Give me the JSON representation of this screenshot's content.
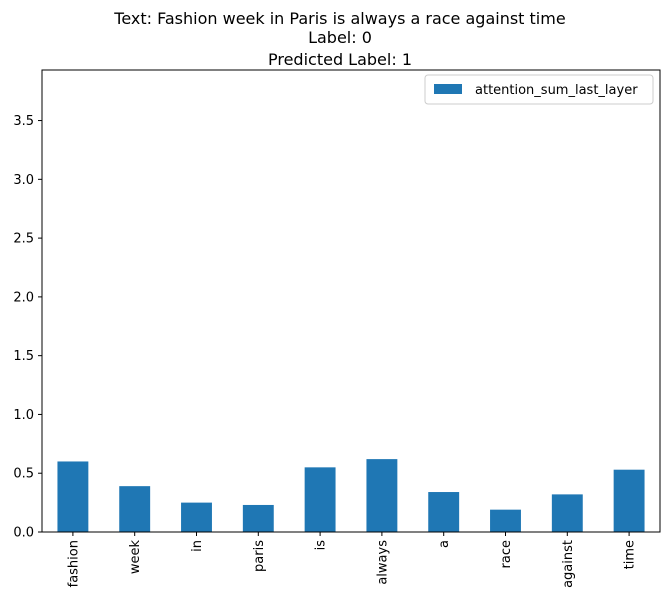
{
  "chart_data": {
    "type": "bar",
    "title_lines": [
      "Text: Fashion week in Paris is always a race against time",
      "Label: 0",
      "Predicted Label: 1"
    ],
    "categories": [
      "fashion",
      "week",
      "in",
      "paris",
      "is",
      "always",
      "a",
      "race",
      "against",
      "time"
    ],
    "series": [
      {
        "name": "attention_sum_last_layer",
        "color": "#1f77b4",
        "values": [
          0.6,
          0.39,
          0.25,
          0.23,
          0.55,
          0.62,
          0.34,
          0.19,
          0.32,
          0.53
        ]
      }
    ],
    "ylim": [
      0,
      3.93
    ],
    "yticks": [
      "0.0",
      "0.5",
      "1.0",
      "1.5",
      "2.0",
      "2.5",
      "3.0",
      "3.5"
    ],
    "xlabel": "",
    "ylabel": "",
    "grid": false,
    "legend_position": "top-right"
  }
}
